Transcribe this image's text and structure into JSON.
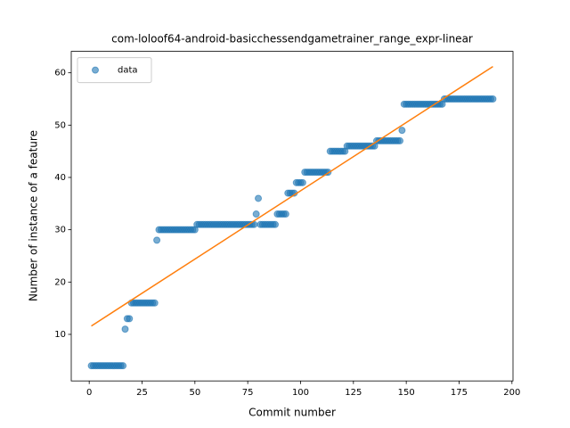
{
  "chart_data": {
    "type": "scatter",
    "title": "com-loloof64-android-basicchessendgametrainer_range_expr-linear",
    "xlabel": "Commit number",
    "ylabel": "Number of instance of a feature",
    "xlim": [
      -8.5,
      200.5
    ],
    "ylim": [
      1.1,
      64.1
    ],
    "xticks": [
      0,
      25,
      50,
      75,
      100,
      125,
      150,
      175,
      200
    ],
    "yticks": [
      10,
      20,
      30,
      40,
      50,
      60
    ],
    "legend": "upper left",
    "series": [
      {
        "name": "data",
        "type": "scatter",
        "color": "#1f77b4",
        "x": [
          1,
          2,
          3,
          4,
          5,
          6,
          7,
          8,
          9,
          10,
          11,
          12,
          13,
          14,
          15,
          16,
          17,
          18,
          19,
          20,
          21,
          22,
          23,
          24,
          25,
          26,
          27,
          28,
          29,
          30,
          31,
          32,
          33,
          34,
          35,
          36,
          37,
          38,
          39,
          40,
          41,
          42,
          43,
          44,
          45,
          46,
          47,
          48,
          49,
          50,
          51,
          52,
          53,
          54,
          55,
          56,
          57,
          58,
          59,
          60,
          61,
          62,
          63,
          64,
          65,
          66,
          67,
          68,
          69,
          70,
          71,
          72,
          73,
          74,
          75,
          76,
          77,
          78,
          79,
          80,
          81,
          82,
          83,
          84,
          85,
          86,
          87,
          88,
          89,
          90,
          91,
          92,
          93,
          94,
          95,
          96,
          97,
          98,
          99,
          100,
          101,
          102,
          103,
          104,
          105,
          106,
          107,
          108,
          109,
          110,
          111,
          112,
          113,
          114,
          115,
          116,
          117,
          118,
          119,
          120,
          121,
          122,
          123,
          124,
          125,
          126,
          127,
          128,
          129,
          130,
          131,
          132,
          133,
          134,
          135,
          136,
          137,
          138,
          139,
          140,
          141,
          142,
          143,
          144,
          145,
          146,
          147,
          148,
          149,
          150,
          151,
          152,
          153,
          154,
          155,
          156,
          157,
          158,
          159,
          160,
          161,
          162,
          163,
          164,
          165,
          166,
          167,
          168,
          169,
          170,
          171,
          172,
          173,
          174,
          175,
          176,
          177,
          178,
          179,
          180,
          181,
          182,
          183,
          184,
          185,
          186,
          187,
          188,
          189,
          190,
          191
        ],
        "values": [
          4,
          4,
          4,
          4,
          4,
          4,
          4,
          4,
          4,
          4,
          4,
          4,
          4,
          4,
          4,
          4,
          11,
          13,
          13,
          16,
          16,
          16,
          16,
          16,
          16,
          16,
          16,
          16,
          16,
          16,
          16,
          28,
          30,
          30,
          30,
          30,
          30,
          30,
          30,
          30,
          30,
          30,
          30,
          30,
          30,
          30,
          30,
          30,
          30,
          30,
          31,
          31,
          31,
          31,
          31,
          31,
          31,
          31,
          31,
          31,
          31,
          31,
          31,
          31,
          31,
          31,
          31,
          31,
          31,
          31,
          31,
          31,
          31,
          31,
          31,
          31,
          31,
          31,
          33,
          36,
          31,
          31,
          31,
          31,
          31,
          31,
          31,
          31,
          33,
          33,
          33,
          33,
          33,
          37,
          37,
          37,
          37,
          39,
          39,
          39,
          39,
          41,
          41,
          41,
          41,
          41,
          41,
          41,
          41,
          41,
          41,
          41,
          41,
          45,
          45,
          45,
          45,
          45,
          45,
          45,
          45,
          46,
          46,
          46,
          46,
          46,
          46,
          46,
          46,
          46,
          46,
          46,
          46,
          46,
          46,
          47,
          47,
          47,
          47,
          47,
          47,
          47,
          47,
          47,
          47,
          47,
          47,
          49,
          54,
          54,
          54,
          54,
          54,
          54,
          54,
          54,
          54,
          54,
          54,
          54,
          54,
          54,
          54,
          54,
          54,
          54,
          54,
          55,
          55,
          55,
          55,
          55,
          55,
          55,
          55,
          55,
          55,
          55,
          55,
          55,
          55,
          55,
          55,
          55,
          55,
          55,
          55,
          55,
          55,
          55,
          55
        ]
      },
      {
        "type": "line",
        "color": "#ff7f0e",
        "x": [
          1,
          191
        ],
        "values": [
          11.6,
          61.2
        ]
      }
    ]
  }
}
